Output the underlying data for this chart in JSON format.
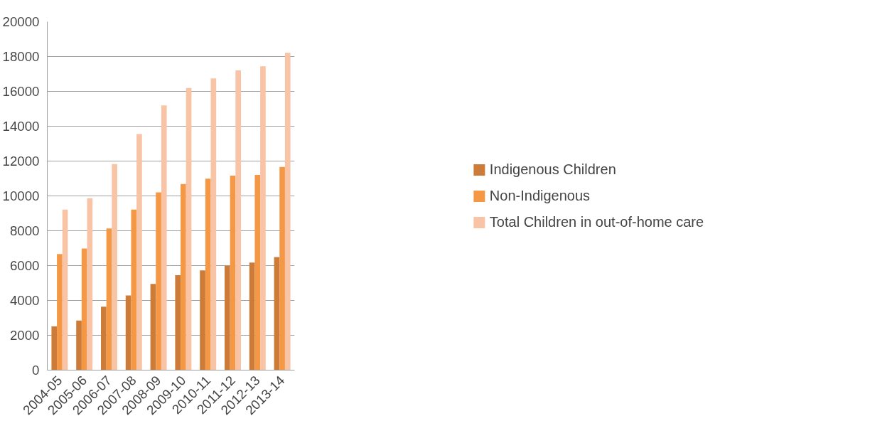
{
  "chart_data": {
    "type": "bar",
    "categories": [
      "2004-05",
      "2005-06",
      "2006-07",
      "2007-08",
      "2008-09",
      "2009-10",
      "2010-11",
      "2011-12",
      "2012-13",
      "2013-14"
    ],
    "series": [
      {
        "name": "Indigenous Children",
        "color": "#cd7b38",
        "values": [
          2510,
          2850,
          3640,
          4290,
          4950,
          5450,
          5720,
          5990,
          6170,
          6490
        ]
      },
      {
        "name": "Non-Indigenous",
        "color": "#f59846",
        "values": [
          6660,
          6980,
          8130,
          9210,
          10200,
          10680,
          10990,
          11160,
          11200,
          11660
        ]
      },
      {
        "name": "Total Children in out-of-home care",
        "color": "#f9c3a6",
        "values": [
          9210,
          9870,
          11830,
          13550,
          15190,
          16190,
          16750,
          17200,
          17440,
          18210
        ]
      }
    ],
    "ylim": [
      0,
      20000
    ],
    "yticks": [
      0,
      2000,
      4000,
      6000,
      8000,
      10000,
      12000,
      14000,
      16000,
      18000,
      20000
    ],
    "grid": "y",
    "legend": "right"
  }
}
